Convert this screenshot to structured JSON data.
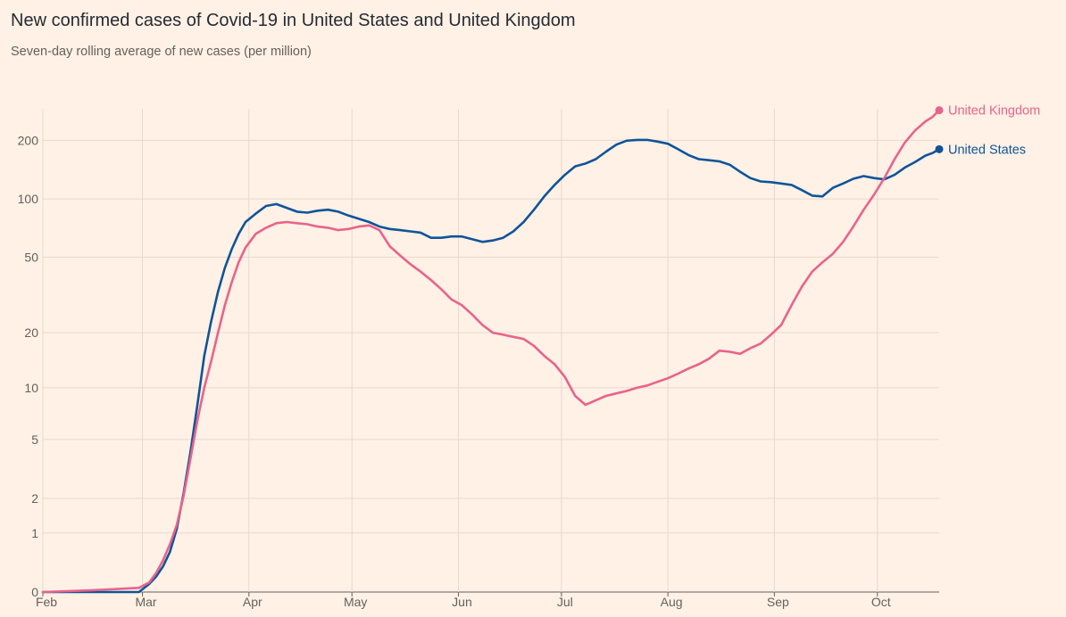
{
  "chart_data": {
    "type": "line",
    "title": "New confirmed cases of Covid-19 in United States and United Kingdom",
    "subtitle": "Seven-day rolling average of new cases (per million)",
    "yscale": "symlog",
    "ylim": [
      0,
      290
    ],
    "yticks": [
      {
        "value": 0,
        "label": "0"
      },
      {
        "value": 1,
        "label": "1"
      },
      {
        "value": 2,
        "label": "2"
      },
      {
        "value": 5,
        "label": "5"
      },
      {
        "value": 10,
        "label": "10"
      },
      {
        "value": 20,
        "label": "20"
      },
      {
        "value": 50,
        "label": "50"
      },
      {
        "value": 100,
        "label": "100"
      },
      {
        "value": 200,
        "label": "200"
      }
    ],
    "xlim": [
      "2020-02-01",
      "2020-10-19"
    ],
    "xticks": [
      {
        "date": "2020-02-01",
        "label": "Feb"
      },
      {
        "date": "2020-03-01",
        "label": "Mar"
      },
      {
        "date": "2020-04-01",
        "label": "Apr"
      },
      {
        "date": "2020-05-01",
        "label": "May"
      },
      {
        "date": "2020-06-01",
        "label": "Jun"
      },
      {
        "date": "2020-07-01",
        "label": "Jul"
      },
      {
        "date": "2020-08-01",
        "label": "Aug"
      },
      {
        "date": "2020-09-01",
        "label": "Sep"
      },
      {
        "date": "2020-10-01",
        "label": "Oct"
      }
    ],
    "grid": true,
    "legend": "end-of-line labels",
    "series": [
      {
        "name": "United States",
        "color": "#0f5499",
        "points": [
          [
            "2020-02-01",
            0
          ],
          [
            "2020-02-15",
            0
          ],
          [
            "2020-02-29",
            0
          ],
          [
            "2020-03-03",
            0.1
          ],
          [
            "2020-03-05",
            0.2
          ],
          [
            "2020-03-07",
            0.35
          ],
          [
            "2020-03-09",
            0.6
          ],
          [
            "2020-03-11",
            1.1
          ],
          [
            "2020-03-13",
            2.2
          ],
          [
            "2020-03-15",
            4.2
          ],
          [
            "2020-03-17",
            8
          ],
          [
            "2020-03-19",
            15
          ],
          [
            "2020-03-21",
            23
          ],
          [
            "2020-03-23",
            33
          ],
          [
            "2020-03-25",
            44
          ],
          [
            "2020-03-27",
            55
          ],
          [
            "2020-03-29",
            66
          ],
          [
            "2020-03-31",
            76
          ],
          [
            "2020-04-03",
            84
          ],
          [
            "2020-04-06",
            92
          ],
          [
            "2020-04-09",
            94
          ],
          [
            "2020-04-12",
            90
          ],
          [
            "2020-04-15",
            86
          ],
          [
            "2020-04-18",
            85
          ],
          [
            "2020-04-21",
            87
          ],
          [
            "2020-04-24",
            88
          ],
          [
            "2020-04-27",
            86
          ],
          [
            "2020-04-30",
            82
          ],
          [
            "2020-05-03",
            79
          ],
          [
            "2020-05-06",
            76
          ],
          [
            "2020-05-09",
            72
          ],
          [
            "2020-05-12",
            70
          ],
          [
            "2020-05-15",
            69
          ],
          [
            "2020-05-18",
            68
          ],
          [
            "2020-05-21",
            67
          ],
          [
            "2020-05-24",
            63
          ],
          [
            "2020-05-27",
            63
          ],
          [
            "2020-05-30",
            64
          ],
          [
            "2020-06-02",
            64
          ],
          [
            "2020-06-05",
            62
          ],
          [
            "2020-06-08",
            60
          ],
          [
            "2020-06-11",
            61
          ],
          [
            "2020-06-14",
            63
          ],
          [
            "2020-06-17",
            68
          ],
          [
            "2020-06-20",
            76
          ],
          [
            "2020-06-23",
            88
          ],
          [
            "2020-06-26",
            103
          ],
          [
            "2020-06-29",
            118
          ],
          [
            "2020-07-02",
            133
          ],
          [
            "2020-07-05",
            147
          ],
          [
            "2020-07-08",
            152
          ],
          [
            "2020-07-11",
            160
          ],
          [
            "2020-07-14",
            175
          ],
          [
            "2020-07-17",
            190
          ],
          [
            "2020-07-20",
            199
          ],
          [
            "2020-07-23",
            201
          ],
          [
            "2020-07-26",
            201
          ],
          [
            "2020-07-29",
            197
          ],
          [
            "2020-08-01",
            192
          ],
          [
            "2020-08-04",
            180
          ],
          [
            "2020-08-07",
            168
          ],
          [
            "2020-08-10",
            160
          ],
          [
            "2020-08-13",
            158
          ],
          [
            "2020-08-16",
            156
          ],
          [
            "2020-08-19",
            150
          ],
          [
            "2020-08-22",
            138
          ],
          [
            "2020-08-25",
            128
          ],
          [
            "2020-08-28",
            123
          ],
          [
            "2020-08-31",
            122
          ],
          [
            "2020-09-03",
            120
          ],
          [
            "2020-09-06",
            118
          ],
          [
            "2020-09-09",
            111
          ],
          [
            "2020-09-12",
            104
          ],
          [
            "2020-09-15",
            103
          ],
          [
            "2020-09-18",
            114
          ],
          [
            "2020-09-21",
            120
          ],
          [
            "2020-09-24",
            127
          ],
          [
            "2020-09-27",
            131
          ],
          [
            "2020-09-30",
            128
          ],
          [
            "2020-10-03",
            126
          ],
          [
            "2020-10-06",
            133
          ],
          [
            "2020-10-09",
            145
          ],
          [
            "2020-10-12",
            155
          ],
          [
            "2020-10-15",
            167
          ],
          [
            "2020-10-17",
            172
          ],
          [
            "2020-10-19",
            180
          ]
        ]
      },
      {
        "name": "United Kingdom",
        "color": "#e8638b",
        "points": [
          [
            "2020-02-01",
            0
          ],
          [
            "2020-02-15",
            0.02
          ],
          [
            "2020-02-29",
            0.05
          ],
          [
            "2020-03-03",
            0.12
          ],
          [
            "2020-03-05",
            0.25
          ],
          [
            "2020-03-07",
            0.45
          ],
          [
            "2020-03-09",
            0.75
          ],
          [
            "2020-03-11",
            1.2
          ],
          [
            "2020-03-13",
            2.1
          ],
          [
            "2020-03-15",
            3.8
          ],
          [
            "2020-03-17",
            6.5
          ],
          [
            "2020-03-19",
            10
          ],
          [
            "2020-03-21",
            14
          ],
          [
            "2020-03-23",
            20
          ],
          [
            "2020-03-25",
            28
          ],
          [
            "2020-03-27",
            37
          ],
          [
            "2020-03-29",
            47
          ],
          [
            "2020-03-31",
            56
          ],
          [
            "2020-04-03",
            66
          ],
          [
            "2020-04-06",
            71
          ],
          [
            "2020-04-09",
            75
          ],
          [
            "2020-04-12",
            76
          ],
          [
            "2020-04-15",
            75
          ],
          [
            "2020-04-18",
            74
          ],
          [
            "2020-04-21",
            72
          ],
          [
            "2020-04-24",
            71
          ],
          [
            "2020-04-27",
            69
          ],
          [
            "2020-04-30",
            70
          ],
          [
            "2020-05-03",
            72
          ],
          [
            "2020-05-06",
            73
          ],
          [
            "2020-05-09",
            69
          ],
          [
            "2020-05-12",
            57
          ],
          [
            "2020-05-15",
            51
          ],
          [
            "2020-05-18",
            46
          ],
          [
            "2020-05-21",
            42
          ],
          [
            "2020-05-24",
            38
          ],
          [
            "2020-05-27",
            34
          ],
          [
            "2020-05-30",
            30
          ],
          [
            "2020-06-02",
            28
          ],
          [
            "2020-06-05",
            25
          ],
          [
            "2020-06-08",
            22
          ],
          [
            "2020-06-11",
            20
          ],
          [
            "2020-06-14",
            19.5
          ],
          [
            "2020-06-17",
            19
          ],
          [
            "2020-06-20",
            18.5
          ],
          [
            "2020-06-23",
            17
          ],
          [
            "2020-06-26",
            15
          ],
          [
            "2020-06-29",
            13.5
          ],
          [
            "2020-07-02",
            11.5
          ],
          [
            "2020-07-05",
            9
          ],
          [
            "2020-07-08",
            8
          ],
          [
            "2020-07-11",
            8.5
          ],
          [
            "2020-07-14",
            9
          ],
          [
            "2020-07-17",
            9.3
          ],
          [
            "2020-07-20",
            9.6
          ],
          [
            "2020-07-23",
            10
          ],
          [
            "2020-07-26",
            10.3
          ],
          [
            "2020-07-29",
            10.8
          ],
          [
            "2020-08-01",
            11.3
          ],
          [
            "2020-08-04",
            12
          ],
          [
            "2020-08-07",
            12.8
          ],
          [
            "2020-08-10",
            13.5
          ],
          [
            "2020-08-13",
            14.5
          ],
          [
            "2020-08-16",
            16
          ],
          [
            "2020-08-19",
            15.8
          ],
          [
            "2020-08-22",
            15.4
          ],
          [
            "2020-08-25",
            16.5
          ],
          [
            "2020-08-28",
            17.5
          ],
          [
            "2020-08-31",
            19.5
          ],
          [
            "2020-09-03",
            22
          ],
          [
            "2020-09-06",
            28
          ],
          [
            "2020-09-09",
            35
          ],
          [
            "2020-09-12",
            42
          ],
          [
            "2020-09-15",
            47
          ],
          [
            "2020-09-18",
            52
          ],
          [
            "2020-09-21",
            60
          ],
          [
            "2020-09-24",
            72
          ],
          [
            "2020-09-27",
            88
          ],
          [
            "2020-09-30",
            105
          ],
          [
            "2020-10-03",
            128
          ],
          [
            "2020-10-06",
            160
          ],
          [
            "2020-10-09",
            195
          ],
          [
            "2020-10-12",
            225
          ],
          [
            "2020-10-15",
            250
          ],
          [
            "2020-10-17",
            263
          ],
          [
            "2020-10-19",
            285
          ]
        ]
      }
    ]
  }
}
